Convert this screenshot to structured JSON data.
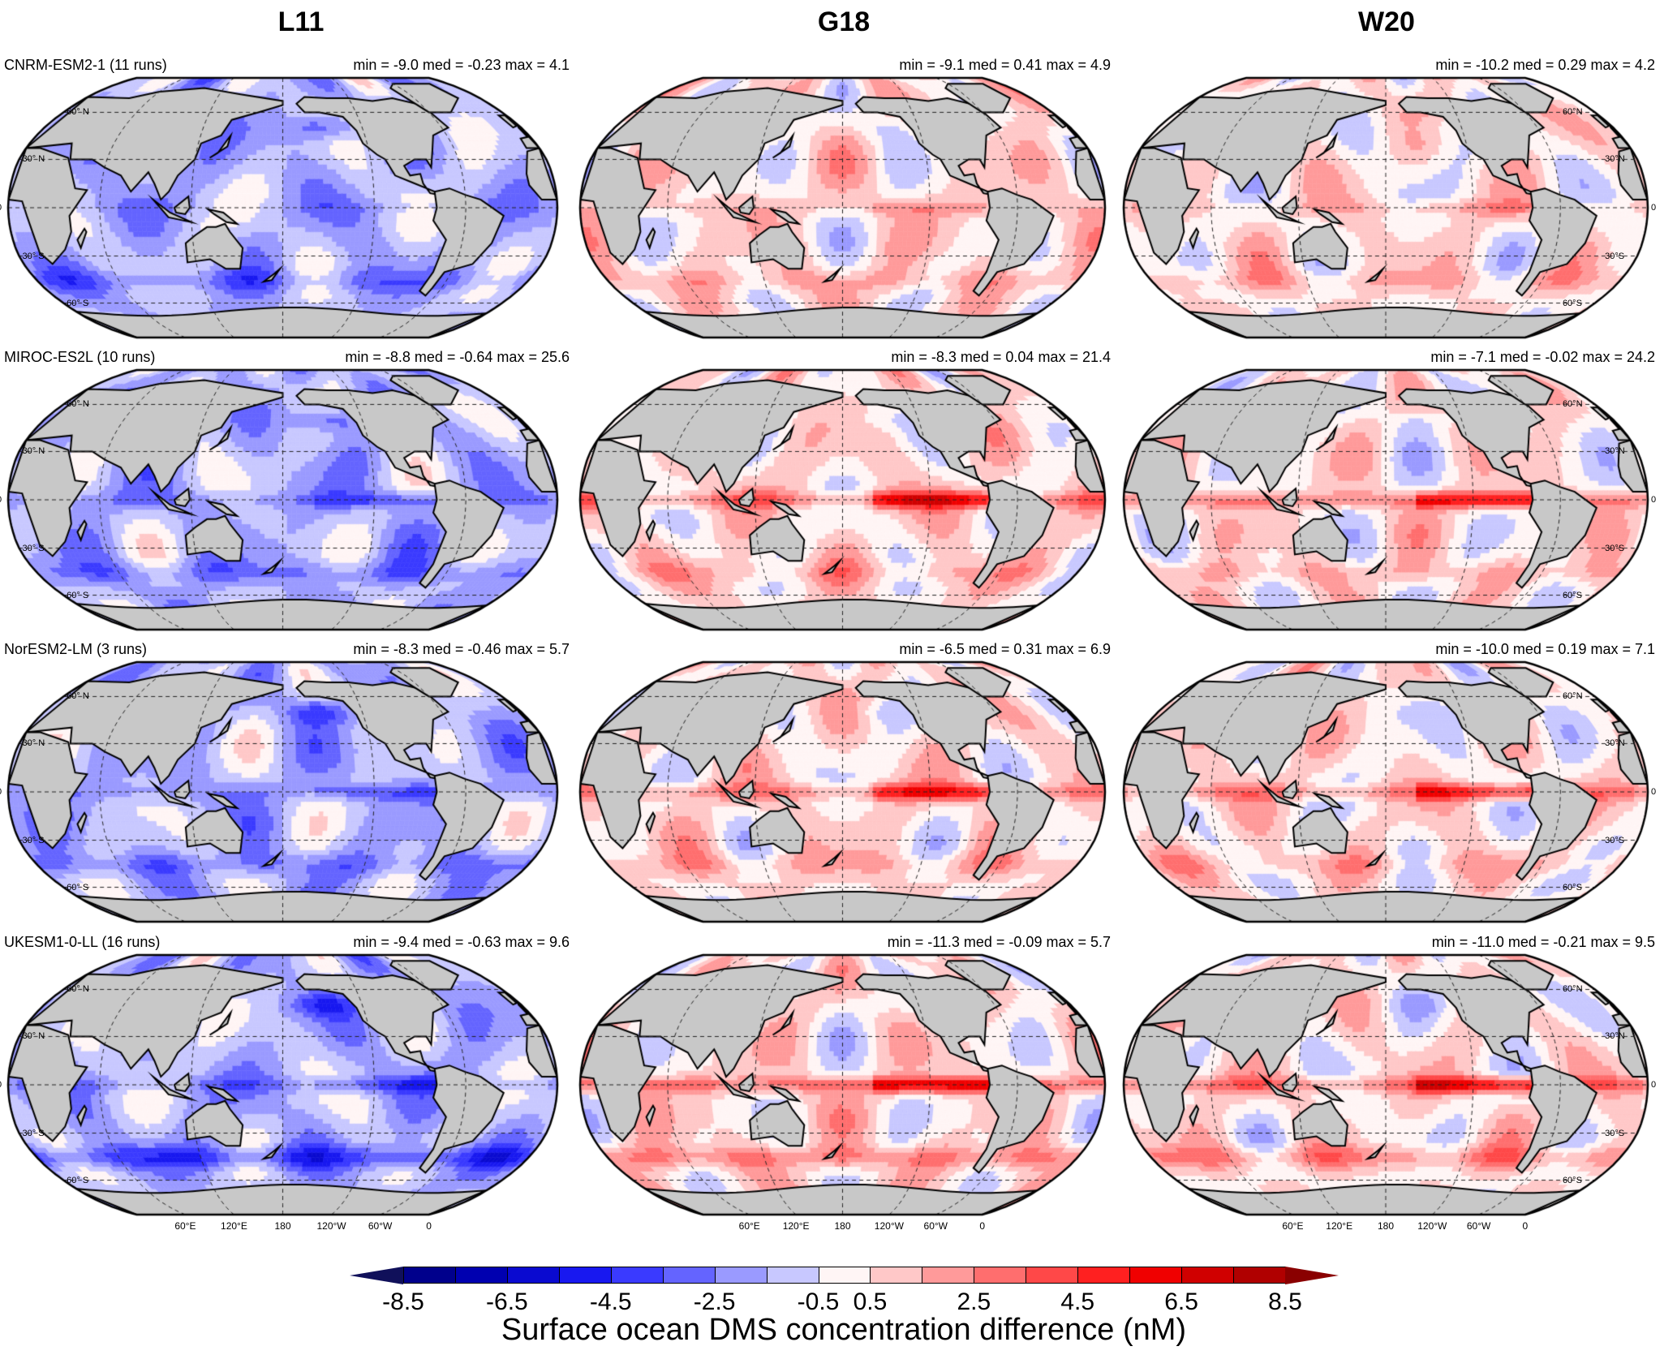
{
  "columns": [
    "L11",
    "G18",
    "W20"
  ],
  "rows": [
    {
      "model": "CNRM-ESM2-1 (11 runs)",
      "stats": [
        "min = -9.0 med = -0.23 max = 4.1",
        "min = -9.1 med = 0.41 max = 4.9",
        "min = -10.2 med = 0.29 max = 4.2"
      ]
    },
    {
      "model": "MIROC-ES2L (10 runs)",
      "stats": [
        "min = -8.8 med = -0.64 max = 25.6",
        "min = -8.3 med = 0.04 max = 21.4",
        "min = -7.1 med = -0.02 max = 24.2"
      ]
    },
    {
      "model": "NorESM2-LM (3 runs)",
      "stats": [
        "min = -8.3 med = -0.46 max = 5.7",
        "min = -6.5 med = 0.31 max = 6.9",
        "min = -10.0 med = 0.19 max = 7.1"
      ]
    },
    {
      "model": "UKESM1-0-LL (16 runs)",
      "stats": [
        "min = -9.4 med = -0.63 max = 9.6",
        "min = -11.3 med = -0.09 max = 5.7",
        "min = -11.0 med = -0.21 max = 9.5"
      ]
    }
  ],
  "lat_labels_left": [
    "60° N",
    "30° N",
    "0",
    "30° S",
    "60° S"
  ],
  "lat_labels_right": [
    "60°N",
    "30°N",
    "0",
    "30°S",
    "60°S"
  ],
  "lon_labels": [
    "60°E",
    "120°E",
    "180",
    "120°W",
    "60°W",
    "0"
  ],
  "map": {
    "projection": "Robinson",
    "land_color": "#c8c8c8",
    "coastline_color": "#000000"
  },
  "colorbar": {
    "title": "Surface ocean DMS concentration difference (nM)",
    "tick_labels": [
      "-8.5",
      "-6.5",
      "-4.5",
      "-2.5",
      "-0.5",
      "0.5",
      "2.5",
      "4.5",
      "6.5",
      "8.5"
    ],
    "levels": [
      -8.5,
      -7.5,
      -6.5,
      -5.5,
      -4.5,
      -3.5,
      -2.5,
      -1.5,
      -0.5,
      0.5,
      1.5,
      2.5,
      3.5,
      4.5,
      5.5,
      6.5,
      7.5,
      8.5
    ],
    "colors": [
      "#10105a",
      "#00008c",
      "#0000b0",
      "#0a0ad0",
      "#1818f0",
      "#3a3aff",
      "#6464ff",
      "#9a9aff",
      "#c8c8ff",
      "#fff5f5",
      "#ffc8c8",
      "#ff9a9a",
      "#ff6e6e",
      "#ff4848",
      "#ff2020",
      "#f00000",
      "#d00000",
      "#b00000",
      "#8a0000"
    ],
    "extend": "both"
  }
}
